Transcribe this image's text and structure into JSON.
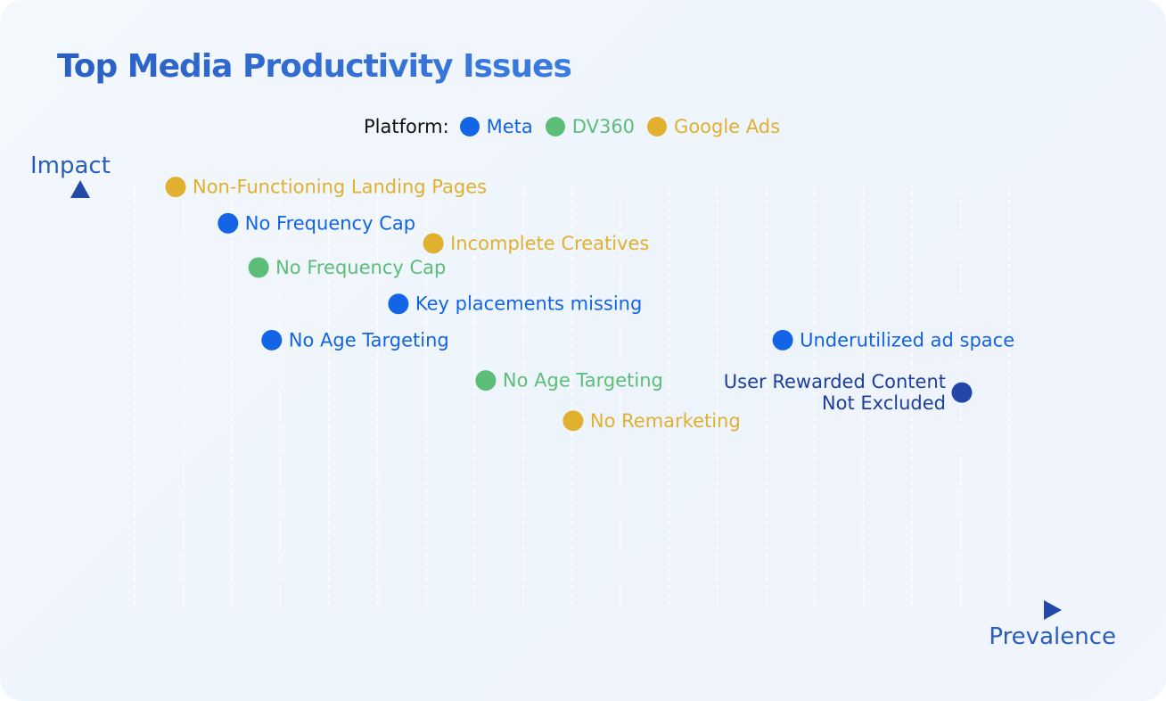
{
  "chart_data": {
    "type": "scatter",
    "title": "Top Media Productivity Issues",
    "xlabel": "Prevalence",
    "ylabel": "Impact",
    "legend_title": "Platform:",
    "legend_position": "top-center",
    "grid": true,
    "xlim": [
      0,
      20
    ],
    "ylim": [
      0,
      10
    ],
    "series": [
      {
        "name": "Meta",
        "color": "#1464e6"
      },
      {
        "name": "DV360",
        "color": "#5cbd78"
      },
      {
        "name": "Google Ads",
        "color": "#e0b02e"
      }
    ],
    "points": [
      {
        "label": "Non-Functioning Landing Pages",
        "platform": "Google Ads",
        "x": 1.0,
        "y": 9.3,
        "color": "#e0b02e",
        "label_side": "right"
      },
      {
        "label": "No Frequency Cap",
        "platform": "Meta",
        "x": 2.2,
        "y": 8.4,
        "color": "#1464e6",
        "label_side": "right"
      },
      {
        "label": "Incomplete Creatives",
        "platform": "Google Ads",
        "x": 6.9,
        "y": 7.9,
        "color": "#e0b02e",
        "label_side": "right"
      },
      {
        "label": "No Frequency Cap",
        "platform": "DV360",
        "x": 2.9,
        "y": 7.3,
        "color": "#5cbd78",
        "label_side": "right"
      },
      {
        "label": "Key placements missing",
        "platform": "Meta",
        "x": 6.1,
        "y": 6.4,
        "color": "#1464e6",
        "label_side": "right"
      },
      {
        "label": "No Age Targeting",
        "platform": "Meta",
        "x": 3.2,
        "y": 5.5,
        "color": "#1464e6",
        "label_side": "right"
      },
      {
        "label": "Underutilized ad space",
        "platform": "Meta",
        "x": 14.9,
        "y": 5.5,
        "color": "#1464e6",
        "label_side": "right"
      },
      {
        "label": "No Age Targeting",
        "platform": "DV360",
        "x": 8.1,
        "y": 4.5,
        "color": "#5cbd78",
        "label_side": "right"
      },
      {
        "label": "User Rewarded Content Not Excluded",
        "platform": "Meta",
        "x": 19.0,
        "y": 4.2,
        "color": "#2346a8",
        "label_side": "left",
        "label_lines": [
          "User Rewarded Content",
          "Not Excluded"
        ]
      },
      {
        "label": "No Remarketing",
        "platform": "Google Ads",
        "x": 10.1,
        "y": 3.5,
        "color": "#e0b02e",
        "label_side": "right"
      }
    ]
  }
}
